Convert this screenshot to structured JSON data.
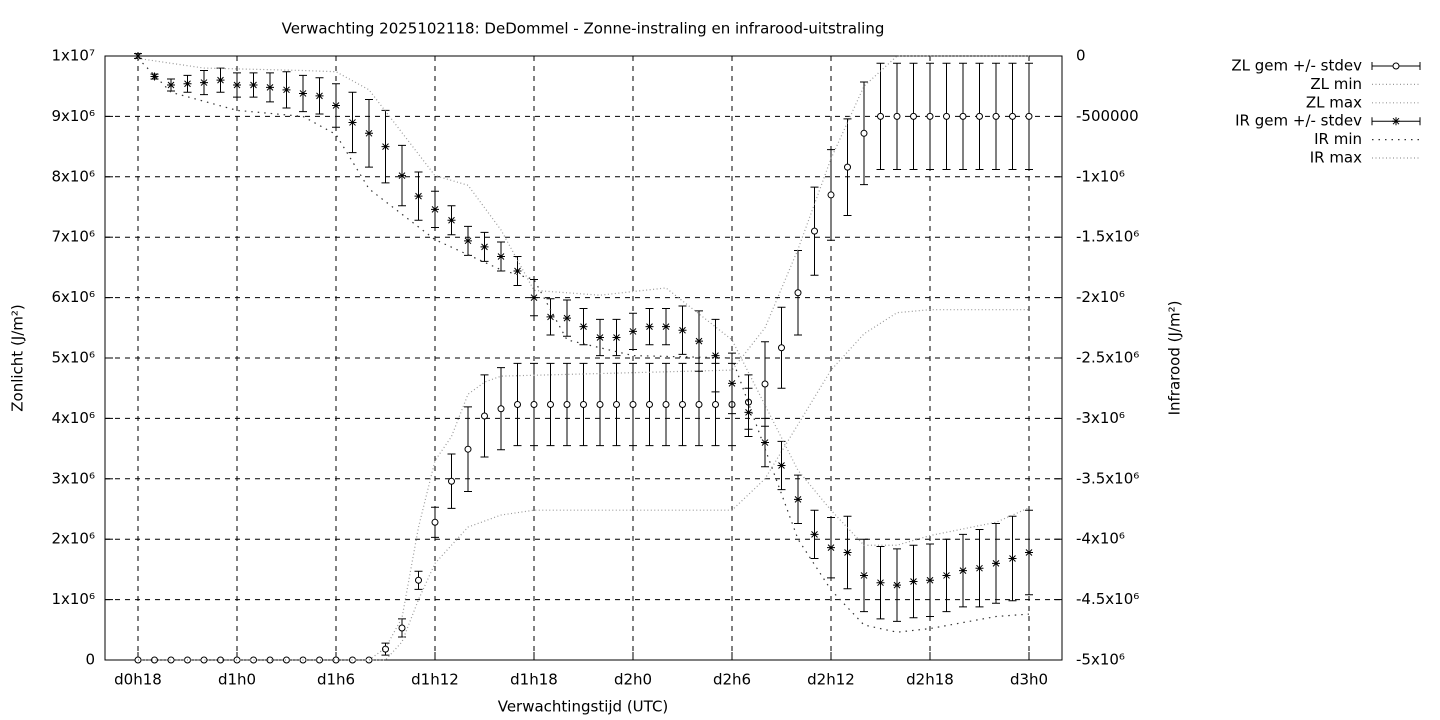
{
  "chart_data": {
    "type": "errorbar",
    "title": "Verwachting 2025102118: DeDommel - Zonne-instraling en infrarood-uitstraling",
    "xlabel": "Verwachtingstijd (UTC)",
    "ylabel": "Zonlicht (J/m²)",
    "y2label": "Infrarood (J/m²)",
    "xlim": [
      16,
      74
    ],
    "xticks": [
      {
        "value": 18,
        "label": "d0h18"
      },
      {
        "value": 24,
        "label": "d1h0"
      },
      {
        "value": 30,
        "label": "d1h6"
      },
      {
        "value": 36,
        "label": "d1h12"
      },
      {
        "value": 42,
        "label": "d1h18"
      },
      {
        "value": 48,
        "label": "d2h0"
      },
      {
        "value": 54,
        "label": "d2h6"
      },
      {
        "value": 60,
        "label": "d2h12"
      },
      {
        "value": 66,
        "label": "d2h18"
      },
      {
        "value": 72,
        "label": "d3h0"
      }
    ],
    "ylim": [
      0,
      10000000
    ],
    "yticks": [
      0,
      {
        "value": 1000000,
        "label": "1x10⁶"
      },
      {
        "value": 2000000,
        "label": "2x10⁶"
      },
      {
        "value": 3000000,
        "label": "3x10⁶"
      },
      {
        "value": 4000000,
        "label": "4x10⁶"
      },
      {
        "value": 5000000,
        "label": "5x10⁶"
      },
      {
        "value": 6000000,
        "label": "6x10⁶"
      },
      {
        "value": 7000000,
        "label": "7x10⁶"
      },
      {
        "value": 8000000,
        "label": "8x10⁶"
      },
      {
        "value": 9000000,
        "label": "9x10⁶"
      },
      {
        "value": 10000000,
        "label": "1x10⁷"
      }
    ],
    "y2lim": [
      -5000000,
      0
    ],
    "y2ticks": [
      0,
      -500000,
      {
        "value": -1000000,
        "label": "-1x10⁶"
      },
      {
        "value": -1500000,
        "label": "-1.5x10⁶"
      },
      {
        "value": -2000000,
        "label": "-2x10⁶"
      },
      {
        "value": -2500000,
        "label": "-2.5x10⁶"
      },
      {
        "value": -3000000,
        "label": "-3x10⁶"
      },
      {
        "value": -3500000,
        "label": "-3.5x10⁶"
      },
      {
        "value": -4000000,
        "label": "-4x10⁶"
      },
      {
        "value": -4500000,
        "label": "-4.5x10⁶"
      },
      {
        "value": -5000000,
        "label": "-5x10⁶"
      }
    ],
    "grid": true,
    "legend": "outside-top-right",
    "x": [
      18,
      19,
      20,
      21,
      22,
      23,
      24,
      25,
      26,
      27,
      28,
      29,
      30,
      31,
      32,
      33,
      34,
      35,
      36,
      37,
      38,
      39,
      40,
      41,
      42,
      43,
      44,
      45,
      46,
      47,
      48,
      49,
      50,
      51,
      52,
      53,
      54,
      55,
      56,
      57,
      58,
      59,
      60,
      61,
      62,
      63,
      64,
      65,
      66,
      67,
      68,
      69,
      70,
      71,
      72
    ],
    "series": [
      {
        "name": "ZL gem +/- stdev",
        "color": "#000000",
        "marker": "circle",
        "axis": "y",
        "values": [
          0,
          0,
          0,
          0,
          0,
          0,
          0,
          0,
          0,
          0,
          0,
          0,
          0,
          0,
          0,
          180000,
          530000,
          1320000,
          2280000,
          2960000,
          3490000,
          4040000,
          4160000,
          4230000,
          4230000,
          4230000,
          4230000,
          4230000,
          4230000,
          4230000,
          4230000,
          4230000,
          4230000,
          4230000,
          4230000,
          4230000,
          4230000,
          4270000,
          4570000,
          5170000,
          6080000,
          7100000,
          7700000,
          8160000,
          8720000,
          9000000,
          9000000,
          9000000,
          9000000,
          9000000,
          9000000,
          9000000,
          9000000,
          9000000,
          9000000
        ],
        "errors": [
          0,
          0,
          0,
          0,
          0,
          0,
          0,
          0,
          0,
          0,
          0,
          0,
          0,
          0,
          0,
          100000,
          150000,
          150000,
          250000,
          450000,
          700000,
          680000,
          680000,
          680000,
          680000,
          680000,
          680000,
          680000,
          680000,
          680000,
          680000,
          680000,
          680000,
          680000,
          680000,
          680000,
          680000,
          450000,
          700000,
          670000,
          700000,
          730000,
          750000,
          800000,
          850000,
          880000,
          880000,
          880000,
          880000,
          880000,
          880000,
          880000,
          880000,
          880000,
          880000
        ]
      },
      {
        "name": "ZL min",
        "color": "#999999",
        "marker": "dotted",
        "axis": "y",
        "x": [
          18,
          33,
          34,
          35,
          36,
          37,
          38,
          40,
          42,
          54,
          56,
          58,
          60,
          62,
          64,
          66,
          72
        ],
        "values": [
          0,
          0,
          300000,
          1000000,
          1600000,
          1900000,
          2200000,
          2400000,
          2480000,
          2480000,
          3000000,
          3900000,
          4800000,
          5400000,
          5750000,
          5800000,
          5800000
        ]
      },
      {
        "name": "ZL max",
        "color": "#999999",
        "marker": "dotted",
        "axis": "y",
        "x": [
          18,
          32,
          33,
          34,
          35,
          36,
          37,
          38,
          39,
          40,
          54,
          56,
          58,
          60,
          62,
          64,
          72
        ],
        "values": [
          0,
          0,
          200000,
          700000,
          2200000,
          3300000,
          3700000,
          4400000,
          4600000,
          4700000,
          4800000,
          5500000,
          6800000,
          8300000,
          9500000,
          10000000,
          10000000
        ]
      },
      {
        "name": "IR gem +/- stdev",
        "color": "#000000",
        "marker": "asterisk",
        "axis": "y2",
        "values": [
          0,
          -170000,
          -240000,
          -230000,
          -220000,
          -200000,
          -240000,
          -240000,
          -260000,
          -280000,
          -310000,
          -330000,
          -410000,
          -550000,
          -640000,
          -750000,
          -990000,
          -1160000,
          -1270000,
          -1360000,
          -1530000,
          -1580000,
          -1660000,
          -1780000,
          -2000000,
          -2160000,
          -2170000,
          -2240000,
          -2330000,
          -2330000,
          -2280000,
          -2240000,
          -2240000,
          -2270000,
          -2360000,
          -2480000,
          -2710000,
          -2950000,
          -3200000,
          -3390000,
          -3670000,
          -3960000,
          -4070000,
          -4110000,
          -4300000,
          -4360000,
          -4380000,
          -4350000,
          -4340000,
          -4300000,
          -4260000,
          -4240000,
          -4200000,
          -4160000,
          -4110000
        ],
        "errors": [
          20000,
          20000,
          50000,
          70000,
          100000,
          100000,
          100000,
          100000,
          120000,
          150000,
          150000,
          150000,
          180000,
          250000,
          280000,
          300000,
          250000,
          200000,
          150000,
          120000,
          120000,
          120000,
          120000,
          120000,
          150000,
          150000,
          150000,
          150000,
          150000,
          150000,
          150000,
          150000,
          150000,
          200000,
          250000,
          300000,
          250000,
          200000,
          200000,
          200000,
          200000,
          200000,
          250000,
          300000,
          300000,
          300000,
          300000,
          300000,
          300000,
          300000,
          300000,
          320000,
          330000,
          350000,
          350000
        ]
      },
      {
        "name": "IR min",
        "color": "#333333",
        "marker": "dotted",
        "axis": "y2",
        "x": [
          18,
          20,
          24,
          28,
          30,
          32,
          36,
          40,
          42,
          44,
          48,
          54,
          58,
          60,
          62,
          64,
          66,
          70,
          72
        ],
        "values": [
          -20000,
          -300000,
          -450000,
          -500000,
          -650000,
          -1100000,
          -1520000,
          -1770000,
          -1850000,
          -2350000,
          -2480000,
          -2500000,
          -4000000,
          -4420000,
          -4710000,
          -4770000,
          -4740000,
          -4640000,
          -4620000
        ]
      },
      {
        "name": "IR max",
        "color": "#999999",
        "marker": "dotted",
        "axis": "y2",
        "x": [
          18,
          22,
          28,
          30,
          32,
          36,
          38,
          40,
          42,
          46,
          50,
          54,
          58,
          60,
          62,
          64,
          66,
          70,
          72
        ],
        "values": [
          -20000,
          -100000,
          -120000,
          -130000,
          -280000,
          -990000,
          -1070000,
          -1440000,
          -1940000,
          -1980000,
          -1920000,
          -2350000,
          -3430000,
          -3760000,
          -4050000,
          -4050000,
          -3970000,
          -3860000,
          -3740000
        ]
      }
    ]
  }
}
